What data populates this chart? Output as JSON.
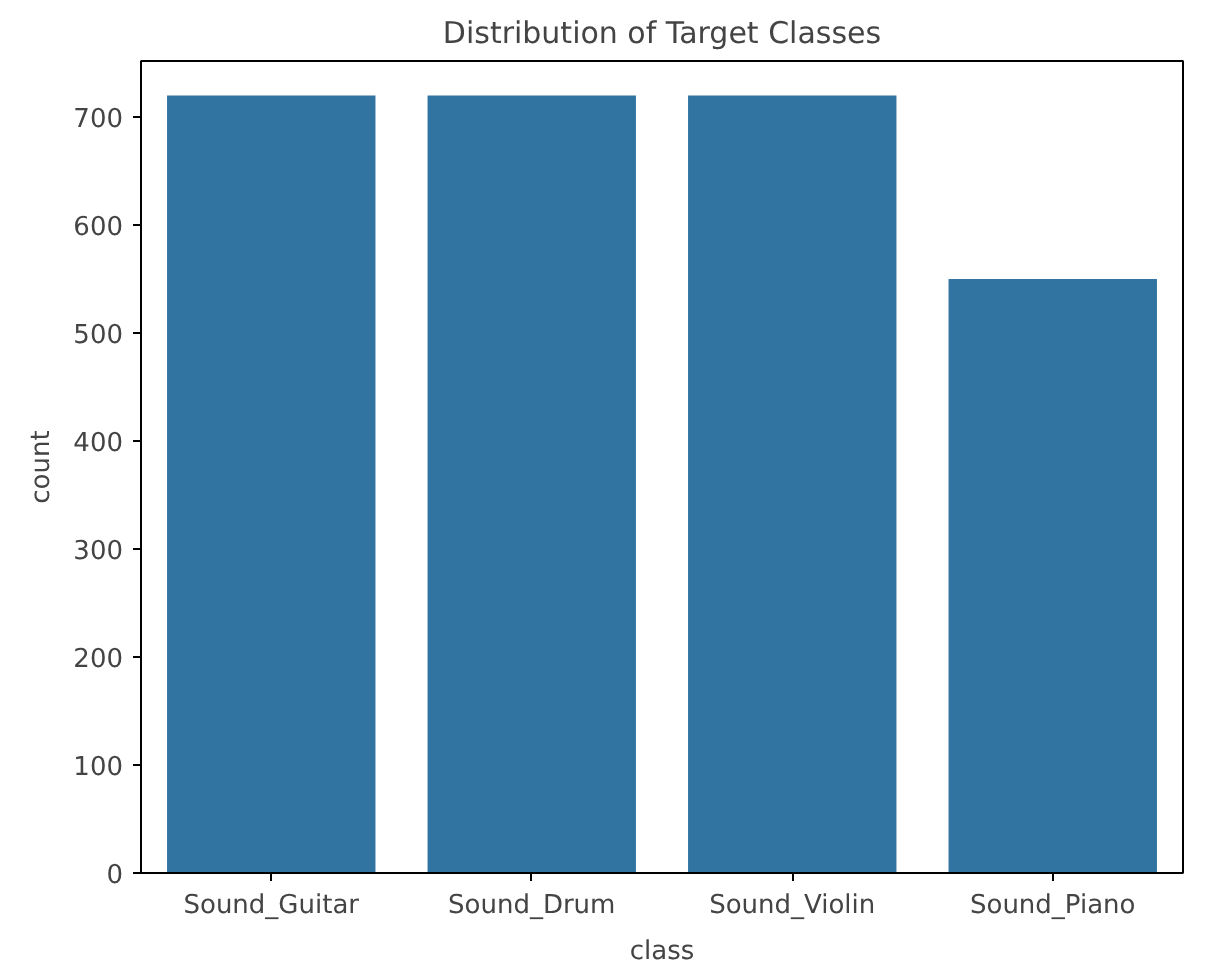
{
  "chart_data": {
    "type": "bar",
    "title": "Distribution of Target Classes",
    "xlabel": "class",
    "ylabel": "count",
    "categories": [
      "Sound_Guitar",
      "Sound_Drum",
      "Sound_Violin",
      "Sound_Piano"
    ],
    "values": [
      720,
      720,
      720,
      550
    ],
    "color": "#3274a1",
    "ylim": [
      0,
      752
    ],
    "yticks": [
      0,
      100,
      200,
      300,
      400,
      500,
      600,
      700
    ],
    "grid": false
  }
}
